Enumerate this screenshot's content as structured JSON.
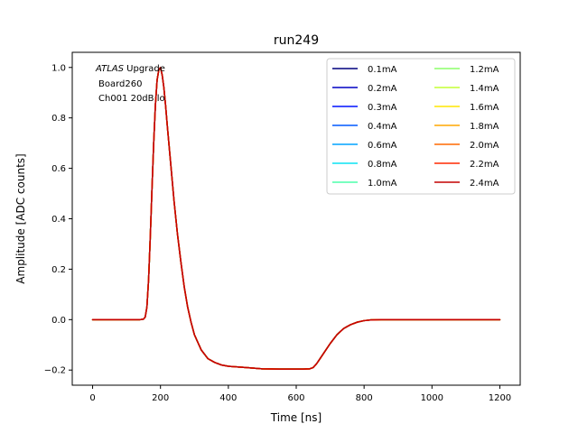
{
  "chart_data": {
    "type": "line",
    "title": "run249",
    "xlabel": "Time [ns]",
    "ylabel": "Amplitude [ADC counts]",
    "xlim": [
      -60,
      1260
    ],
    "ylim": [
      -0.26,
      1.06
    ],
    "xticks": [
      0,
      200,
      400,
      600,
      800,
      1000,
      1200
    ],
    "yticks": [
      -0.2,
      0.0,
      0.2,
      0.4,
      0.6,
      0.8,
      1.0
    ],
    "xtick_labels": [
      "0",
      "200",
      "400",
      "600",
      "800",
      "1000",
      "1200"
    ],
    "ytick_labels": [
      "−0.2",
      "0.0",
      "0.2",
      "0.4",
      "0.6",
      "0.8",
      "1.0"
    ],
    "grid": false,
    "legend_placement": "top-right",
    "annotation": {
      "line1_italic": "ATLAS",
      "line1_rest": " Upgrade",
      "line2": "Board260",
      "line3": "Ch001 20dB lo"
    },
    "x": [
      0,
      140,
      150,
      155,
      160,
      165,
      170,
      175,
      180,
      185,
      190,
      195,
      200,
      205,
      210,
      215,
      220,
      230,
      240,
      250,
      260,
      270,
      280,
      290,
      300,
      320,
      340,
      360,
      380,
      400,
      450,
      500,
      550,
      600,
      620,
      640,
      650,
      660,
      670,
      680,
      700,
      720,
      740,
      760,
      780,
      800,
      820,
      850,
      900,
      1000,
      1100,
      1200
    ],
    "series": [
      {
        "name": "0.1mA",
        "color": "#00007f",
        "values": [
          0,
          0,
          0.002,
          0.01,
          0.05,
          0.16,
          0.33,
          0.52,
          0.7,
          0.85,
          0.95,
          0.99,
          1.0,
          0.97,
          0.92,
          0.85,
          0.77,
          0.62,
          0.47,
          0.34,
          0.23,
          0.13,
          0.05,
          -0.01,
          -0.06,
          -0.12,
          -0.155,
          -0.17,
          -0.18,
          -0.185,
          -0.19,
          -0.195,
          -0.196,
          -0.196,
          -0.196,
          -0.195,
          -0.19,
          -0.175,
          -0.155,
          -0.135,
          -0.095,
          -0.06,
          -0.035,
          -0.02,
          -0.01,
          -0.004,
          -0.001,
          0,
          0,
          0,
          0,
          0
        ]
      },
      {
        "name": "0.2mA",
        "color": "#0000c4",
        "values": [
          0,
          0,
          0.002,
          0.01,
          0.05,
          0.16,
          0.33,
          0.52,
          0.7,
          0.85,
          0.95,
          0.99,
          1.0,
          0.97,
          0.92,
          0.85,
          0.77,
          0.62,
          0.47,
          0.34,
          0.23,
          0.13,
          0.05,
          -0.01,
          -0.06,
          -0.12,
          -0.155,
          -0.17,
          -0.18,
          -0.185,
          -0.19,
          -0.195,
          -0.196,
          -0.196,
          -0.196,
          -0.195,
          -0.19,
          -0.175,
          -0.155,
          -0.135,
          -0.095,
          -0.06,
          -0.035,
          -0.02,
          -0.01,
          -0.004,
          -0.001,
          0,
          0,
          0,
          0,
          0
        ]
      },
      {
        "name": "0.3mA",
        "color": "#0010ff",
        "values": [
          0,
          0,
          0.002,
          0.01,
          0.05,
          0.16,
          0.33,
          0.52,
          0.7,
          0.85,
          0.95,
          0.99,
          1.0,
          0.97,
          0.92,
          0.85,
          0.77,
          0.62,
          0.47,
          0.34,
          0.23,
          0.13,
          0.05,
          -0.01,
          -0.06,
          -0.12,
          -0.155,
          -0.17,
          -0.18,
          -0.185,
          -0.19,
          -0.195,
          -0.196,
          -0.196,
          -0.196,
          -0.195,
          -0.19,
          -0.175,
          -0.155,
          -0.135,
          -0.095,
          -0.06,
          -0.035,
          -0.02,
          -0.01,
          -0.004,
          -0.001,
          0,
          0,
          0,
          0,
          0
        ]
      },
      {
        "name": "0.4mA",
        "color": "#0058ff",
        "values": [
          0,
          0,
          0.002,
          0.01,
          0.05,
          0.16,
          0.33,
          0.52,
          0.7,
          0.85,
          0.95,
          0.99,
          1.0,
          0.97,
          0.92,
          0.85,
          0.77,
          0.62,
          0.47,
          0.34,
          0.23,
          0.13,
          0.05,
          -0.01,
          -0.06,
          -0.12,
          -0.155,
          -0.17,
          -0.18,
          -0.185,
          -0.19,
          -0.195,
          -0.196,
          -0.196,
          -0.196,
          -0.195,
          -0.19,
          -0.175,
          -0.155,
          -0.135,
          -0.095,
          -0.06,
          -0.035,
          -0.02,
          -0.01,
          -0.004,
          -0.001,
          0,
          0,
          0,
          0,
          0
        ]
      },
      {
        "name": "0.6mA",
        "color": "#00a4ff",
        "values": [
          0,
          0,
          0.002,
          0.01,
          0.05,
          0.16,
          0.33,
          0.52,
          0.7,
          0.85,
          0.95,
          0.99,
          1.0,
          0.97,
          0.92,
          0.85,
          0.77,
          0.62,
          0.47,
          0.34,
          0.23,
          0.13,
          0.05,
          -0.01,
          -0.06,
          -0.12,
          -0.155,
          -0.17,
          -0.18,
          -0.185,
          -0.19,
          -0.195,
          -0.196,
          -0.196,
          -0.196,
          -0.195,
          -0.19,
          -0.175,
          -0.155,
          -0.135,
          -0.095,
          -0.06,
          -0.035,
          -0.02,
          -0.01,
          -0.004,
          -0.001,
          0,
          0,
          0,
          0,
          0
        ]
      },
      {
        "name": "0.8mA",
        "color": "#0ae4f4",
        "values": [
          0,
          0,
          0.002,
          0.01,
          0.05,
          0.16,
          0.33,
          0.52,
          0.7,
          0.85,
          0.95,
          0.99,
          1.0,
          0.97,
          0.92,
          0.85,
          0.77,
          0.62,
          0.47,
          0.34,
          0.23,
          0.13,
          0.05,
          -0.01,
          -0.06,
          -0.12,
          -0.155,
          -0.17,
          -0.18,
          -0.185,
          -0.19,
          -0.195,
          -0.196,
          -0.196,
          -0.196,
          -0.195,
          -0.19,
          -0.175,
          -0.155,
          -0.135,
          -0.095,
          -0.06,
          -0.035,
          -0.02,
          -0.01,
          -0.004,
          -0.001,
          0,
          0,
          0,
          0,
          0
        ]
      },
      {
        "name": "1.0mA",
        "color": "#4cffaa",
        "values": [
          0,
          0,
          0.002,
          0.01,
          0.05,
          0.16,
          0.33,
          0.52,
          0.7,
          0.85,
          0.95,
          0.99,
          1.0,
          0.97,
          0.92,
          0.85,
          0.77,
          0.62,
          0.47,
          0.34,
          0.23,
          0.13,
          0.05,
          -0.01,
          -0.06,
          -0.12,
          -0.155,
          -0.17,
          -0.18,
          -0.185,
          -0.19,
          -0.195,
          -0.196,
          -0.196,
          -0.196,
          -0.195,
          -0.19,
          -0.175,
          -0.155,
          -0.135,
          -0.095,
          -0.06,
          -0.035,
          -0.02,
          -0.01,
          -0.004,
          -0.001,
          0,
          0,
          0,
          0,
          0
        ]
      },
      {
        "name": "1.2mA",
        "color": "#8cff6a",
        "values": [
          0,
          0,
          0.002,
          0.01,
          0.05,
          0.16,
          0.33,
          0.52,
          0.7,
          0.85,
          0.95,
          0.99,
          1.0,
          0.97,
          0.92,
          0.85,
          0.77,
          0.62,
          0.47,
          0.34,
          0.23,
          0.13,
          0.05,
          -0.01,
          -0.06,
          -0.12,
          -0.155,
          -0.17,
          -0.18,
          -0.185,
          -0.19,
          -0.195,
          -0.196,
          -0.196,
          -0.196,
          -0.195,
          -0.19,
          -0.175,
          -0.155,
          -0.135,
          -0.095,
          -0.06,
          -0.035,
          -0.02,
          -0.01,
          -0.004,
          -0.001,
          0,
          0,
          0,
          0,
          0
        ]
      },
      {
        "name": "1.4mA",
        "color": "#c4ff33",
        "values": [
          0,
          0,
          0.002,
          0.01,
          0.05,
          0.16,
          0.33,
          0.52,
          0.7,
          0.85,
          0.95,
          0.99,
          1.0,
          0.97,
          0.92,
          0.85,
          0.77,
          0.62,
          0.47,
          0.34,
          0.23,
          0.13,
          0.05,
          -0.01,
          -0.06,
          -0.12,
          -0.155,
          -0.17,
          -0.18,
          -0.185,
          -0.19,
          -0.195,
          -0.196,
          -0.196,
          -0.196,
          -0.195,
          -0.19,
          -0.175,
          -0.155,
          -0.135,
          -0.095,
          -0.06,
          -0.035,
          -0.02,
          -0.01,
          -0.004,
          -0.001,
          0,
          0,
          0,
          0,
          0
        ]
      },
      {
        "name": "1.6mA",
        "color": "#ffe500",
        "values": [
          0,
          0,
          0.002,
          0.01,
          0.05,
          0.16,
          0.33,
          0.52,
          0.7,
          0.85,
          0.95,
          0.99,
          1.0,
          0.97,
          0.92,
          0.85,
          0.77,
          0.62,
          0.47,
          0.34,
          0.23,
          0.13,
          0.05,
          -0.01,
          -0.06,
          -0.12,
          -0.155,
          -0.17,
          -0.18,
          -0.185,
          -0.19,
          -0.195,
          -0.196,
          -0.196,
          -0.196,
          -0.195,
          -0.19,
          -0.175,
          -0.155,
          -0.135,
          -0.095,
          -0.06,
          -0.035,
          -0.02,
          -0.01,
          -0.004,
          -0.001,
          0,
          0,
          0,
          0,
          0
        ]
      },
      {
        "name": "1.8mA",
        "color": "#ffa700",
        "values": [
          0,
          0,
          0.002,
          0.01,
          0.05,
          0.16,
          0.33,
          0.52,
          0.7,
          0.85,
          0.95,
          0.99,
          1.0,
          0.97,
          0.92,
          0.85,
          0.77,
          0.62,
          0.47,
          0.34,
          0.23,
          0.13,
          0.05,
          -0.01,
          -0.06,
          -0.12,
          -0.155,
          -0.17,
          -0.18,
          -0.185,
          -0.19,
          -0.195,
          -0.196,
          -0.196,
          -0.196,
          -0.195,
          -0.19,
          -0.175,
          -0.155,
          -0.135,
          -0.095,
          -0.06,
          -0.035,
          -0.02,
          -0.01,
          -0.004,
          -0.001,
          0,
          0,
          0,
          0,
          0
        ]
      },
      {
        "name": "2.0mA",
        "color": "#ff6800",
        "values": [
          0,
          0,
          0.002,
          0.01,
          0.05,
          0.16,
          0.33,
          0.52,
          0.7,
          0.85,
          0.95,
          0.99,
          1.0,
          0.97,
          0.92,
          0.85,
          0.77,
          0.62,
          0.47,
          0.34,
          0.23,
          0.13,
          0.05,
          -0.01,
          -0.06,
          -0.12,
          -0.155,
          -0.17,
          -0.18,
          -0.185,
          -0.19,
          -0.195,
          -0.196,
          -0.196,
          -0.196,
          -0.195,
          -0.19,
          -0.175,
          -0.155,
          -0.135,
          -0.095,
          -0.06,
          -0.035,
          -0.02,
          -0.01,
          -0.004,
          -0.001,
          0,
          0,
          0,
          0,
          0
        ]
      },
      {
        "name": "2.2mA",
        "color": "#ff2900",
        "values": [
          0,
          0,
          0.002,
          0.01,
          0.05,
          0.16,
          0.33,
          0.52,
          0.7,
          0.85,
          0.95,
          0.99,
          1.0,
          0.97,
          0.92,
          0.85,
          0.77,
          0.62,
          0.47,
          0.34,
          0.23,
          0.13,
          0.05,
          -0.01,
          -0.06,
          -0.12,
          -0.155,
          -0.17,
          -0.18,
          -0.185,
          -0.19,
          -0.195,
          -0.196,
          -0.196,
          -0.196,
          -0.195,
          -0.19,
          -0.175,
          -0.155,
          -0.135,
          -0.095,
          -0.06,
          -0.035,
          -0.02,
          -0.01,
          -0.004,
          -0.001,
          0,
          0,
          0,
          0,
          0
        ]
      },
      {
        "name": "2.4mA",
        "color": "#c40000",
        "values": [
          0,
          0,
          0.002,
          0.01,
          0.05,
          0.16,
          0.33,
          0.52,
          0.7,
          0.85,
          0.95,
          0.99,
          1.0,
          0.97,
          0.92,
          0.85,
          0.77,
          0.62,
          0.47,
          0.34,
          0.23,
          0.13,
          0.05,
          -0.01,
          -0.06,
          -0.12,
          -0.155,
          -0.17,
          -0.18,
          -0.185,
          -0.19,
          -0.195,
          -0.196,
          -0.196,
          -0.196,
          -0.195,
          -0.19,
          -0.175,
          -0.155,
          -0.135,
          -0.095,
          -0.06,
          -0.035,
          -0.02,
          -0.01,
          -0.004,
          -0.001,
          0,
          0,
          0,
          0,
          0
        ]
      }
    ]
  }
}
